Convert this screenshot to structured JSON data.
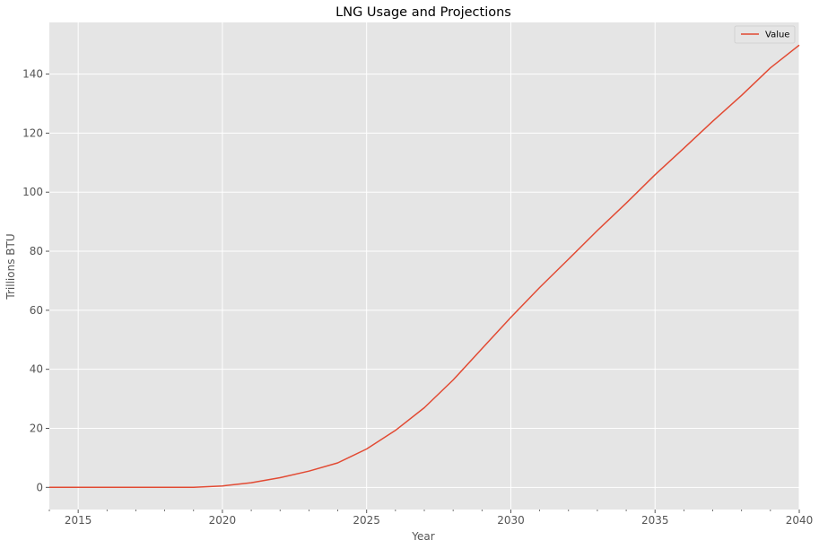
{
  "chart_data": {
    "type": "line",
    "title": "LNG Usage and Projections",
    "xlabel": "Year",
    "ylabel": "Trillions BTU",
    "xlim": [
      2014,
      2040
    ],
    "ylim": [
      -7.5,
      157.5
    ],
    "xticks": [
      2015,
      2020,
      2025,
      2030,
      2035,
      2040
    ],
    "yticks": [
      0,
      20,
      40,
      60,
      80,
      100,
      120,
      140
    ],
    "grid": true,
    "legend_position": "top-right",
    "series": [
      {
        "name": "Value",
        "color": "#E24A33",
        "x": [
          2014,
          2015,
          2016,
          2017,
          2018,
          2019,
          2020,
          2021,
          2022,
          2023,
          2024,
          2025,
          2026,
          2027,
          2028,
          2029,
          2030,
          2031,
          2032,
          2033,
          2034,
          2035,
          2036,
          2037,
          2038,
          2039,
          2040
        ],
        "y": [
          0,
          0,
          0,
          0,
          0,
          0,
          0.5,
          1.6,
          3.3,
          5.5,
          8.3,
          13,
          19.3,
          27,
          36.4,
          47,
          57.6,
          67.7,
          77.3,
          87,
          96.3,
          105.9,
          114.9,
          124,
          132.8,
          142.1,
          149.8
        ]
      }
    ]
  }
}
